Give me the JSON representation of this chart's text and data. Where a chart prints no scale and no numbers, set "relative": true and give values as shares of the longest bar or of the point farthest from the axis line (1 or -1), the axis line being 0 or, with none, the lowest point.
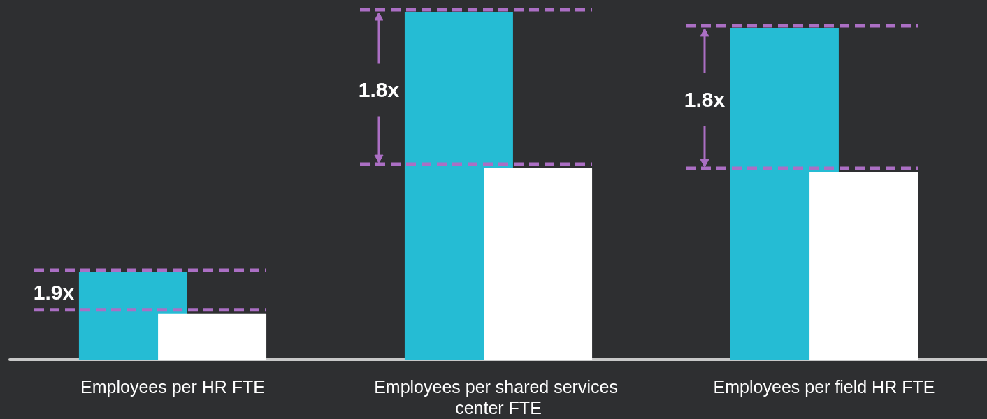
{
  "chart_data": {
    "type": "bar",
    "relative": true,
    "categories": [
      "Employees per HR FTE",
      "Employees per shared services center FTE",
      "Employees per field HR FTE"
    ],
    "series": [
      {
        "color": "#25bcd4",
        "values": [
          0.251,
          1,
          0.954
        ]
      },
      {
        "color": "#ffffff",
        "values": [
          0.133,
          0.552,
          0.54
        ]
      }
    ],
    "annotations": [
      "1.9x",
      "1.8x",
      "1.8x"
    ]
  }
}
